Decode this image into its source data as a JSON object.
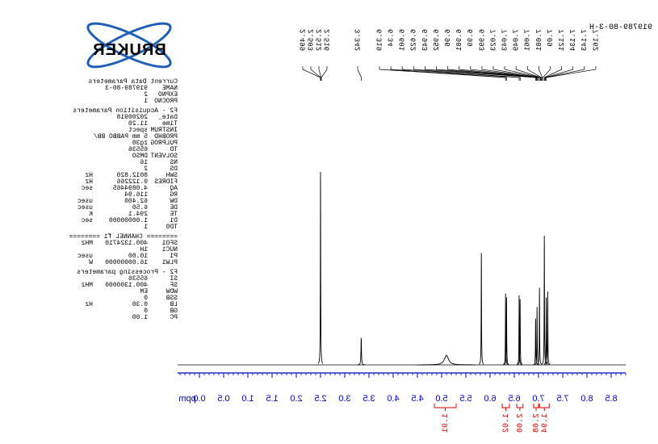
{
  "title": "919789-80-3-H",
  "logo": "BRUKER",
  "parameters": [
    {
      "title": "Current Data Parameters",
      "rows": [
        [
          "NAME",
          "919789-80-3"
        ],
        [
          "EXPNO",
          "2"
        ],
        [
          "PROCNO",
          "1"
        ]
      ]
    },
    {
      "title": "F2 - Acquisition Parameters",
      "rows": [
        [
          "Date_",
          "20200918"
        ],
        [
          "Time",
          "11.20"
        ],
        [
          "INSTRUM",
          "spect"
        ],
        [
          "PROBHD",
          "5 mm PABBO BB/"
        ],
        [
          "PULPROG",
          "zg30"
        ],
        [
          "TD",
          "65536"
        ],
        [
          "SOLVENT",
          "DMSO"
        ],
        [
          "NS",
          "16"
        ],
        [
          "DS",
          "2"
        ],
        [
          "SWH",
          "8012.820",
          "Hz"
        ],
        [
          "FIDRES",
          "0.122266",
          "Hz"
        ],
        [
          "AQ",
          "4.0894465",
          "sec"
        ],
        [
          "RG",
          "116.94"
        ],
        [
          "DW",
          "62.400",
          "usec"
        ],
        [
          "DE",
          "6.50",
          "usec"
        ],
        [
          "TE",
          "294.1",
          "K"
        ],
        [
          "D1",
          "1.00000000",
          "sec"
        ],
        [
          "TD0",
          "1"
        ]
      ]
    },
    {
      "title": "======== CHANNEL f1 ========",
      "rows": [
        [
          "SFO1",
          "400.1324710",
          "MHz"
        ],
        [
          "NUC1",
          "1H"
        ],
        [
          "P1",
          "10.00",
          "usec"
        ],
        [
          "PLW1",
          "16.00000000",
          "W"
        ]
      ]
    },
    {
      "title": "F2 - Processing parameters",
      "rows": [
        [
          "SI",
          "65536"
        ],
        [
          "SF",
          "400.1300000",
          "MHz"
        ],
        [
          "WDW",
          "EM"
        ],
        [
          "SSB",
          "0"
        ],
        [
          "LB",
          "0.30",
          "Hz"
        ],
        [
          "GB",
          "0"
        ],
        [
          "PC",
          "1.00"
        ]
      ]
    }
  ],
  "chart_data": {
    "type": "nmr",
    "x_label": "ppm",
    "xlim": [
      -0.45,
      8.8
    ],
    "xticks": [
      {
        "value": 0,
        "label": "0.0"
      },
      0.5,
      {
        "value": 1,
        "label": "1.0"
      },
      1.5,
      {
        "value": 2,
        "label": "2.0"
      },
      2.5,
      {
        "value": 3,
        "label": "3.0"
      },
      3.5,
      {
        "value": 4,
        "label": "4.0"
      },
      4.5,
      {
        "value": 5,
        "label": "5.0"
      },
      5.5,
      {
        "value": 6,
        "label": "6.0"
      },
      6.5,
      {
        "value": 7,
        "label": "7.0"
      },
      7.5,
      {
        "value": 8,
        "label": "8.0"
      },
      8.5
    ],
    "minor_tick_interval": 0.1,
    "axis_color": "#0000c8",
    "spectrum_color": "#000000",
    "integral_color": "#e00000",
    "peaks": {
      "ppm": [
        2.5,
        3.34,
        5.1,
        5.82,
        6.32,
        6.34,
        6.6,
        6.62,
        6.94,
        6.97,
        7.02,
        7.12,
        7.16,
        7.19
      ],
      "intensities": [
        100,
        14,
        5,
        58,
        37,
        35,
        36,
        34,
        24,
        30,
        40,
        67,
        35,
        38
      ],
      "linewidths": [
        0.004,
        0.006,
        0.05,
        0.004,
        0.004,
        0.004,
        0.004,
        0.004,
        0.004,
        0.004,
        0.004,
        0.004,
        0.004,
        0.004
      ]
    },
    "peak_labels": [
      2.499,
      2.503,
      2.512,
      2.516,
      3.342,
      6.319,
      6.34,
      6.601,
      6.622,
      6.943,
      6.952,
      6.96,
      6.981,
      6.99,
      6.993,
      7.023,
      7.043,
      7.049,
      7.061,
      7.081,
      7.09,
      7.121,
      7.134,
      7.143,
      7.162
    ],
    "integrals": {
      "ranges": [
        [
          4.85,
          5.3
        ],
        [
          6.25,
          6.4
        ],
        [
          6.55,
          6.68
        ],
        [
          6.9,
          7.0
        ],
        [
          7.02,
          7.22
        ]
      ],
      "values": [
        1.91,
        1.02,
        2,
        2.08,
        1.94
      ],
      "value_labels": [
        "1.91",
        "1.02",
        "2.00",
        "2.08",
        "1.94"
      ]
    }
  }
}
